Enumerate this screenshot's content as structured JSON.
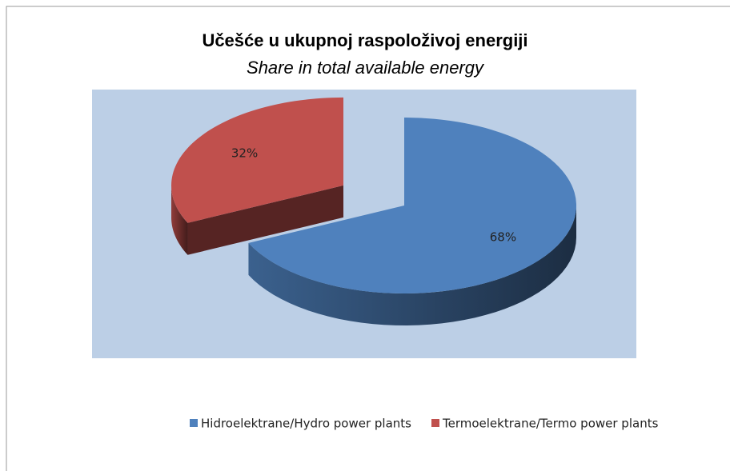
{
  "chart_data": {
    "type": "pie",
    "title": "Učešće u ukupnoj raspoloživoj energiji",
    "subtitle": "Share in total available energy",
    "categories": [
      "Hidroelektrane/Hydro power plants",
      "Termoelektrane/Termo power plants"
    ],
    "values": [
      68,
      32
    ],
    "value_labels": [
      "68%",
      "32%"
    ],
    "colors": [
      "#4f81bd",
      "#c0504d"
    ],
    "legend": "bottom"
  }
}
